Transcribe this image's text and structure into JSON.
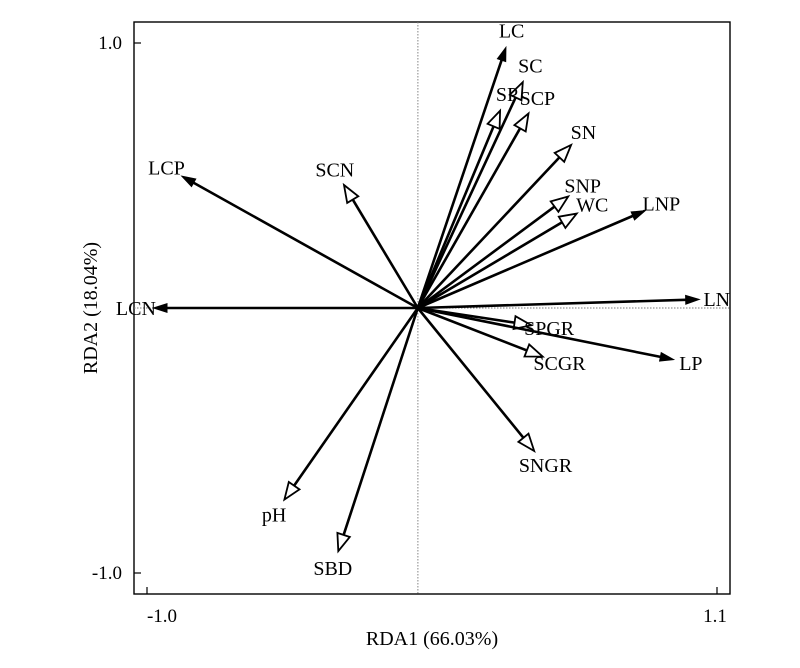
{
  "chart_data": {
    "type": "scatter",
    "subtype": "rda-biplot",
    "xlabel": "RDA1 (66.03%)",
    "ylabel": "RDA2 (18.04%)",
    "xlim": [
      -1.0,
      1.1
    ],
    "ylim": [
      -1.0,
      1.0
    ],
    "x_tick_labels": [
      "-1.0",
      "1.1"
    ],
    "y_tick_labels": [
      "1.0",
      "-1.0"
    ],
    "reference_lines": "dotted at x=0 and y=0",
    "grid": false,
    "legend": "none",
    "series": [
      {
        "values": [
          {
            "label": "LC",
            "x": 0.31,
            "y": 0.91,
            "head": "line"
          },
          {
            "label": "SC",
            "x": 0.37,
            "y": 0.79,
            "head": "open"
          },
          {
            "label": "SP",
            "x": 0.29,
            "y": 0.69,
            "head": "open"
          },
          {
            "label": "SCP",
            "x": 0.39,
            "y": 0.68,
            "head": "open"
          },
          {
            "label": "SN",
            "x": 0.54,
            "y": 0.57,
            "head": "open"
          },
          {
            "label": "SNP",
            "x": 0.53,
            "y": 0.39,
            "head": "open"
          },
          {
            "label": "WC",
            "x": 0.56,
            "y": 0.33,
            "head": "open"
          },
          {
            "label": "LNP",
            "x": 0.8,
            "y": 0.34,
            "head": "line"
          },
          {
            "label": "LN",
            "x": 0.99,
            "y": 0.03,
            "head": "line"
          },
          {
            "label": "SPGR",
            "x": 0.4,
            "y": -0.06,
            "head": "open"
          },
          {
            "label": "LP",
            "x": 0.9,
            "y": -0.18,
            "head": "line"
          },
          {
            "label": "SCGR",
            "x": 0.44,
            "y": -0.17,
            "head": "open"
          },
          {
            "label": "SNGR",
            "x": 0.41,
            "y": -0.5,
            "head": "open"
          },
          {
            "label": "LCP",
            "x": -0.83,
            "y": 0.46,
            "head": "line"
          },
          {
            "label": "SCN",
            "x": -0.26,
            "y": 0.43,
            "head": "open"
          },
          {
            "label": "LCN",
            "x": -0.93,
            "y": 0.0,
            "head": "line"
          },
          {
            "label": "pH",
            "x": -0.47,
            "y": -0.67,
            "head": "open"
          },
          {
            "label": "SBD",
            "x": -0.28,
            "y": -0.85,
            "head": "open"
          }
        ]
      }
    ]
  }
}
